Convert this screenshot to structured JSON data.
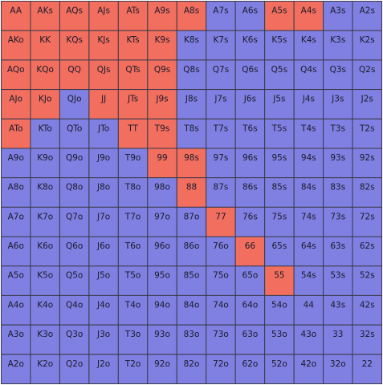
{
  "range_grid": {
    "colors": {
      "selected": "#f26f5f",
      "unselected": "#8080e2"
    },
    "rows": [
      [
        {
          "hand": "AA",
          "selected": true
        },
        {
          "hand": "AKs",
          "selected": true
        },
        {
          "hand": "AQs",
          "selected": true
        },
        {
          "hand": "AJs",
          "selected": true
        },
        {
          "hand": "ATs",
          "selected": true
        },
        {
          "hand": "A9s",
          "selected": true
        },
        {
          "hand": "A8s",
          "selected": true
        },
        {
          "hand": "A7s",
          "selected": false
        },
        {
          "hand": "A6s",
          "selected": false
        },
        {
          "hand": "A5s",
          "selected": true
        },
        {
          "hand": "A4s",
          "selected": true
        },
        {
          "hand": "A3s",
          "selected": false
        },
        {
          "hand": "A2s",
          "selected": false
        }
      ],
      [
        {
          "hand": "AKo",
          "selected": true
        },
        {
          "hand": "KK",
          "selected": true
        },
        {
          "hand": "KQs",
          "selected": true
        },
        {
          "hand": "KJs",
          "selected": true
        },
        {
          "hand": "KTs",
          "selected": true
        },
        {
          "hand": "K9s",
          "selected": true
        },
        {
          "hand": "K8s",
          "selected": false
        },
        {
          "hand": "K7s",
          "selected": false
        },
        {
          "hand": "K6s",
          "selected": false
        },
        {
          "hand": "K5s",
          "selected": false
        },
        {
          "hand": "K4s",
          "selected": false
        },
        {
          "hand": "K3s",
          "selected": false
        },
        {
          "hand": "K2s",
          "selected": false
        }
      ],
      [
        {
          "hand": "AQo",
          "selected": true
        },
        {
          "hand": "KQo",
          "selected": true
        },
        {
          "hand": "QQ",
          "selected": true
        },
        {
          "hand": "QJs",
          "selected": true
        },
        {
          "hand": "QTs",
          "selected": true
        },
        {
          "hand": "Q9s",
          "selected": true
        },
        {
          "hand": "Q8s",
          "selected": false
        },
        {
          "hand": "Q7s",
          "selected": false
        },
        {
          "hand": "Q6s",
          "selected": false
        },
        {
          "hand": "Q5s",
          "selected": false
        },
        {
          "hand": "Q4s",
          "selected": false
        },
        {
          "hand": "Q3s",
          "selected": false
        },
        {
          "hand": "Q2s",
          "selected": false
        }
      ],
      [
        {
          "hand": "AJo",
          "selected": true
        },
        {
          "hand": "KJo",
          "selected": true
        },
        {
          "hand": "QJo",
          "selected": false
        },
        {
          "hand": "JJ",
          "selected": true
        },
        {
          "hand": "JTs",
          "selected": true
        },
        {
          "hand": "J9s",
          "selected": true
        },
        {
          "hand": "J8s",
          "selected": false
        },
        {
          "hand": "J7s",
          "selected": false
        },
        {
          "hand": "J6s",
          "selected": false
        },
        {
          "hand": "J5s",
          "selected": false
        },
        {
          "hand": "J4s",
          "selected": false
        },
        {
          "hand": "J3s",
          "selected": false
        },
        {
          "hand": "J2s",
          "selected": false
        }
      ],
      [
        {
          "hand": "ATo",
          "selected": true
        },
        {
          "hand": "KTo",
          "selected": false
        },
        {
          "hand": "QTo",
          "selected": false
        },
        {
          "hand": "JTo",
          "selected": false
        },
        {
          "hand": "TT",
          "selected": true
        },
        {
          "hand": "T9s",
          "selected": true
        },
        {
          "hand": "T8s",
          "selected": false
        },
        {
          "hand": "T7s",
          "selected": false
        },
        {
          "hand": "T6s",
          "selected": false
        },
        {
          "hand": "T5s",
          "selected": false
        },
        {
          "hand": "T4s",
          "selected": false
        },
        {
          "hand": "T3s",
          "selected": false
        },
        {
          "hand": "T2s",
          "selected": false
        }
      ],
      [
        {
          "hand": "A9o",
          "selected": false
        },
        {
          "hand": "K9o",
          "selected": false
        },
        {
          "hand": "Q9o",
          "selected": false
        },
        {
          "hand": "J9o",
          "selected": false
        },
        {
          "hand": "T9o",
          "selected": false
        },
        {
          "hand": "99",
          "selected": true
        },
        {
          "hand": "98s",
          "selected": true
        },
        {
          "hand": "97s",
          "selected": false
        },
        {
          "hand": "96s",
          "selected": false
        },
        {
          "hand": "95s",
          "selected": false
        },
        {
          "hand": "94s",
          "selected": false
        },
        {
          "hand": "93s",
          "selected": false
        },
        {
          "hand": "92s",
          "selected": false
        }
      ],
      [
        {
          "hand": "A8o",
          "selected": false
        },
        {
          "hand": "K8o",
          "selected": false
        },
        {
          "hand": "Q8o",
          "selected": false
        },
        {
          "hand": "J8o",
          "selected": false
        },
        {
          "hand": "T8o",
          "selected": false
        },
        {
          "hand": "98o",
          "selected": false
        },
        {
          "hand": "88",
          "selected": true
        },
        {
          "hand": "87s",
          "selected": false
        },
        {
          "hand": "86s",
          "selected": false
        },
        {
          "hand": "85s",
          "selected": false
        },
        {
          "hand": "84s",
          "selected": false
        },
        {
          "hand": "83s",
          "selected": false
        },
        {
          "hand": "82s",
          "selected": false
        }
      ],
      [
        {
          "hand": "A7o",
          "selected": false
        },
        {
          "hand": "K7o",
          "selected": false
        },
        {
          "hand": "Q7o",
          "selected": false
        },
        {
          "hand": "J7o",
          "selected": false
        },
        {
          "hand": "T7o",
          "selected": false
        },
        {
          "hand": "97o",
          "selected": false
        },
        {
          "hand": "87o",
          "selected": false
        },
        {
          "hand": "77",
          "selected": true
        },
        {
          "hand": "76s",
          "selected": false
        },
        {
          "hand": "75s",
          "selected": false
        },
        {
          "hand": "74s",
          "selected": false
        },
        {
          "hand": "73s",
          "selected": false
        },
        {
          "hand": "72s",
          "selected": false
        }
      ],
      [
        {
          "hand": "A6o",
          "selected": false
        },
        {
          "hand": "K6o",
          "selected": false
        },
        {
          "hand": "Q6o",
          "selected": false
        },
        {
          "hand": "J6o",
          "selected": false
        },
        {
          "hand": "T6o",
          "selected": false
        },
        {
          "hand": "96o",
          "selected": false
        },
        {
          "hand": "86o",
          "selected": false
        },
        {
          "hand": "76o",
          "selected": false
        },
        {
          "hand": "66",
          "selected": true
        },
        {
          "hand": "65s",
          "selected": false
        },
        {
          "hand": "64s",
          "selected": false
        },
        {
          "hand": "63s",
          "selected": false
        },
        {
          "hand": "62s",
          "selected": false
        }
      ],
      [
        {
          "hand": "A5o",
          "selected": false
        },
        {
          "hand": "K5o",
          "selected": false
        },
        {
          "hand": "Q5o",
          "selected": false
        },
        {
          "hand": "J5o",
          "selected": false
        },
        {
          "hand": "T5o",
          "selected": false
        },
        {
          "hand": "95o",
          "selected": false
        },
        {
          "hand": "85o",
          "selected": false
        },
        {
          "hand": "75o",
          "selected": false
        },
        {
          "hand": "65o",
          "selected": false
        },
        {
          "hand": "55",
          "selected": true
        },
        {
          "hand": "54s",
          "selected": false
        },
        {
          "hand": "53s",
          "selected": false
        },
        {
          "hand": "52s",
          "selected": false
        }
      ],
      [
        {
          "hand": "A4o",
          "selected": false
        },
        {
          "hand": "K4o",
          "selected": false
        },
        {
          "hand": "Q4o",
          "selected": false
        },
        {
          "hand": "J4o",
          "selected": false
        },
        {
          "hand": "T4o",
          "selected": false
        },
        {
          "hand": "94o",
          "selected": false
        },
        {
          "hand": "84o",
          "selected": false
        },
        {
          "hand": "74o",
          "selected": false
        },
        {
          "hand": "64o",
          "selected": false
        },
        {
          "hand": "54o",
          "selected": false
        },
        {
          "hand": "44",
          "selected": false
        },
        {
          "hand": "43s",
          "selected": false
        },
        {
          "hand": "42s",
          "selected": false
        }
      ],
      [
        {
          "hand": "A3o",
          "selected": false
        },
        {
          "hand": "K3o",
          "selected": false
        },
        {
          "hand": "Q3o",
          "selected": false
        },
        {
          "hand": "J3o",
          "selected": false
        },
        {
          "hand": "T3o",
          "selected": false
        },
        {
          "hand": "93o",
          "selected": false
        },
        {
          "hand": "83o",
          "selected": false
        },
        {
          "hand": "73o",
          "selected": false
        },
        {
          "hand": "63o",
          "selected": false
        },
        {
          "hand": "53o",
          "selected": false
        },
        {
          "hand": "43o",
          "selected": false
        },
        {
          "hand": "33",
          "selected": false
        },
        {
          "hand": "32s",
          "selected": false
        }
      ],
      [
        {
          "hand": "A2o",
          "selected": false
        },
        {
          "hand": "K2o",
          "selected": false
        },
        {
          "hand": "Q2o",
          "selected": false
        },
        {
          "hand": "J2o",
          "selected": false
        },
        {
          "hand": "T2o",
          "selected": false
        },
        {
          "hand": "92o",
          "selected": false
        },
        {
          "hand": "82o",
          "selected": false
        },
        {
          "hand": "72o",
          "selected": false
        },
        {
          "hand": "62o",
          "selected": false
        },
        {
          "hand": "52o",
          "selected": false
        },
        {
          "hand": "42o",
          "selected": false
        },
        {
          "hand": "32o",
          "selected": false
        },
        {
          "hand": "22",
          "selected": false
        }
      ]
    ]
  }
}
